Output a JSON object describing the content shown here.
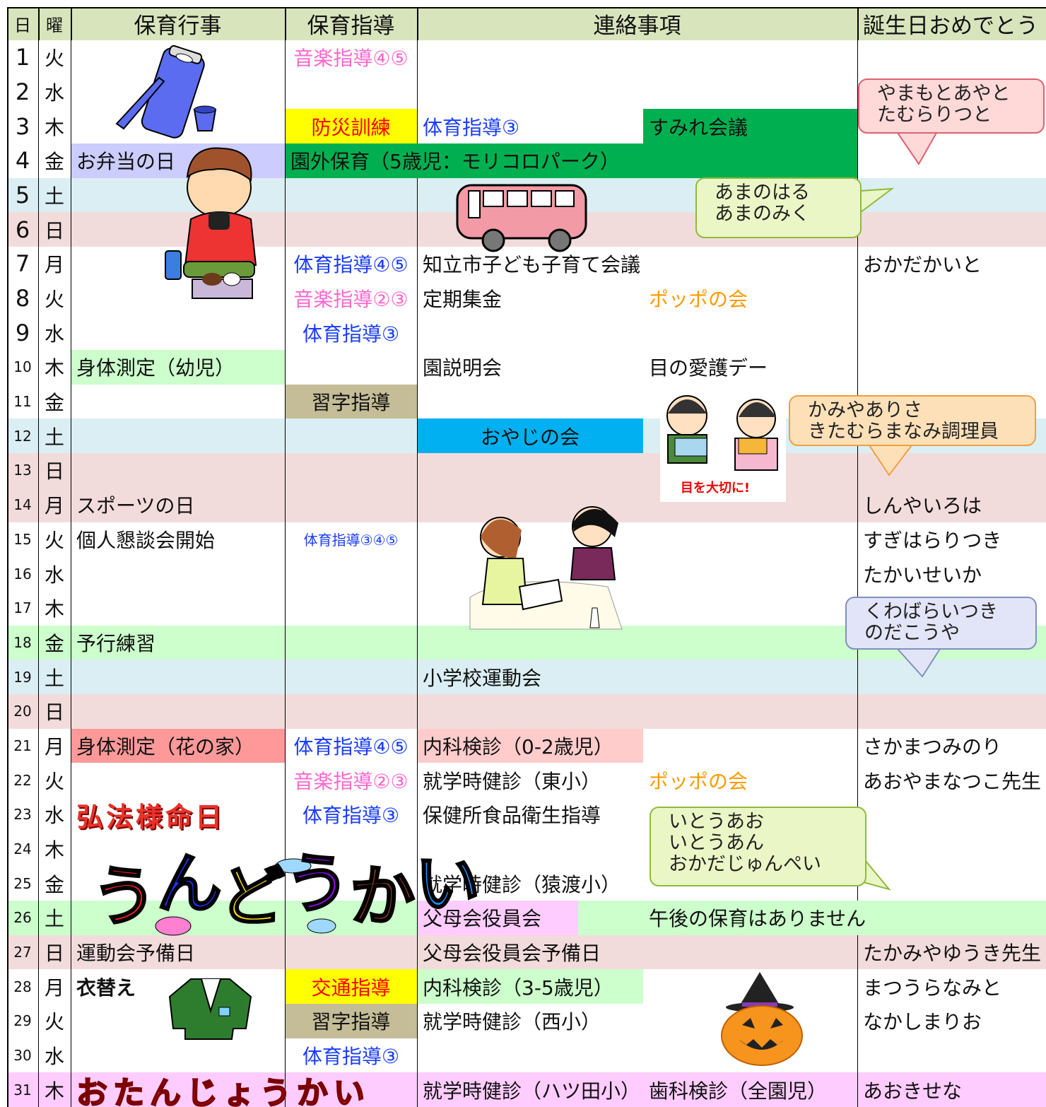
{
  "table": {
    "header": [
      "日",
      "曜",
      "保育行事",
      "保育指導",
      "連絡事項",
      "誕生日おめでとう"
    ],
    "rows": [
      {
        "d": "1",
        "w": "火",
        "guide": "音楽指導④⑤"
      },
      {
        "d": "2",
        "w": "水"
      },
      {
        "d": "3",
        "w": "木",
        "guide": "防災訓練",
        "note": "体育指導③",
        "note2": "すみれ会議"
      },
      {
        "d": "4",
        "w": "金",
        "event": "お弁当の日",
        "guide": "園外保育（5歳児：モリコロパーク）"
      },
      {
        "d": "5",
        "w": "土"
      },
      {
        "d": "6",
        "w": "日"
      },
      {
        "d": "7",
        "w": "月",
        "guide": "体育指導④⑤",
        "note": "知立市子ども子育て会議",
        "bday": "おかだかいと"
      },
      {
        "d": "8",
        "w": "火",
        "guide": "音楽指導②③",
        "note": "定期集金",
        "note2": "ポッポの会"
      },
      {
        "d": "9",
        "w": "水",
        "guide": "体育指導③"
      },
      {
        "d": "10",
        "w": "木",
        "event": "身体測定（幼児）",
        "note": "園説明会",
        "note2": "目の愛護デー"
      },
      {
        "d": "11",
        "w": "金",
        "guide": "習字指導"
      },
      {
        "d": "12",
        "w": "土",
        "note": "おやじの会"
      },
      {
        "d": "13",
        "w": "日"
      },
      {
        "d": "14",
        "w": "月",
        "event": "スポーツの日",
        "bday": "しんやいろは"
      },
      {
        "d": "15",
        "w": "火",
        "event": "個人懇談会開始",
        "guide": "体育指導③④⑤",
        "bday": "すぎはらりつき"
      },
      {
        "d": "16",
        "w": "水",
        "bday": "たかいせいか"
      },
      {
        "d": "17",
        "w": "木"
      },
      {
        "d": "18",
        "w": "金",
        "event": "予行練習"
      },
      {
        "d": "19",
        "w": "土",
        "note": "小学校運動会"
      },
      {
        "d": "20",
        "w": "日"
      },
      {
        "d": "21",
        "w": "月",
        "event": "身体測定（花の家）",
        "guide": "体育指導④⑤",
        "note": "内科検診（0-2歳児）",
        "bday": "さかまつみのり"
      },
      {
        "d": "22",
        "w": "火",
        "guide": "音楽指導②③",
        "note": "就学時健診（東小）",
        "note2": "ポッポの会",
        "bday": "あおやまなつこ先生"
      },
      {
        "d": "23",
        "w": "水",
        "event": "弘法様命日",
        "guide": "体育指導③",
        "note": "保健所食品衛生指導"
      },
      {
        "d": "24",
        "w": "木"
      },
      {
        "d": "25",
        "w": "金",
        "note": "就学時健診（猿渡小）"
      },
      {
        "d": "26",
        "w": "土",
        "note": "父母会役員会",
        "note2": "午後の保育はありません"
      },
      {
        "d": "27",
        "w": "日",
        "event": "運動会予備日",
        "note": "父母会役員会予備日",
        "bday": "たかみやゆうき先生"
      },
      {
        "d": "28",
        "w": "月",
        "event": "衣替え",
        "guide": "交通指導",
        "note": "内科検診（3-5歳児）",
        "bday": "まつうらなみと"
      },
      {
        "d": "29",
        "w": "火",
        "guide": "習字指導",
        "note": "就学時健診（西小）",
        "bday": "なかしまりお"
      },
      {
        "d": "30",
        "w": "水",
        "guide": "体育指導③"
      },
      {
        "d": "31",
        "w": "木",
        "event": "おたんじょうかい",
        "note": "就学時健診（ハツ田小）",
        "note2": "歯科検診（全園児）",
        "bday": "あおきせな"
      }
    ]
  },
  "bubbles": [
    {
      "lines": [
        "やまもとあやと",
        "たむらりつと"
      ]
    },
    {
      "lines": [
        "あまのはる",
        "あまのみく"
      ]
    },
    {
      "lines": [
        "かみやありさ",
        "きたむらまなみ調理員"
      ]
    },
    {
      "lines": [
        "くわばらいつき",
        "のだこうや"
      ]
    },
    {
      "lines": [
        "いとうあお",
        "いとうあん",
        "おかだじゅんぺい"
      ]
    }
  ],
  "artwork": {
    "undokai": "うんどうかい",
    "caption": "目を大切に!"
  }
}
